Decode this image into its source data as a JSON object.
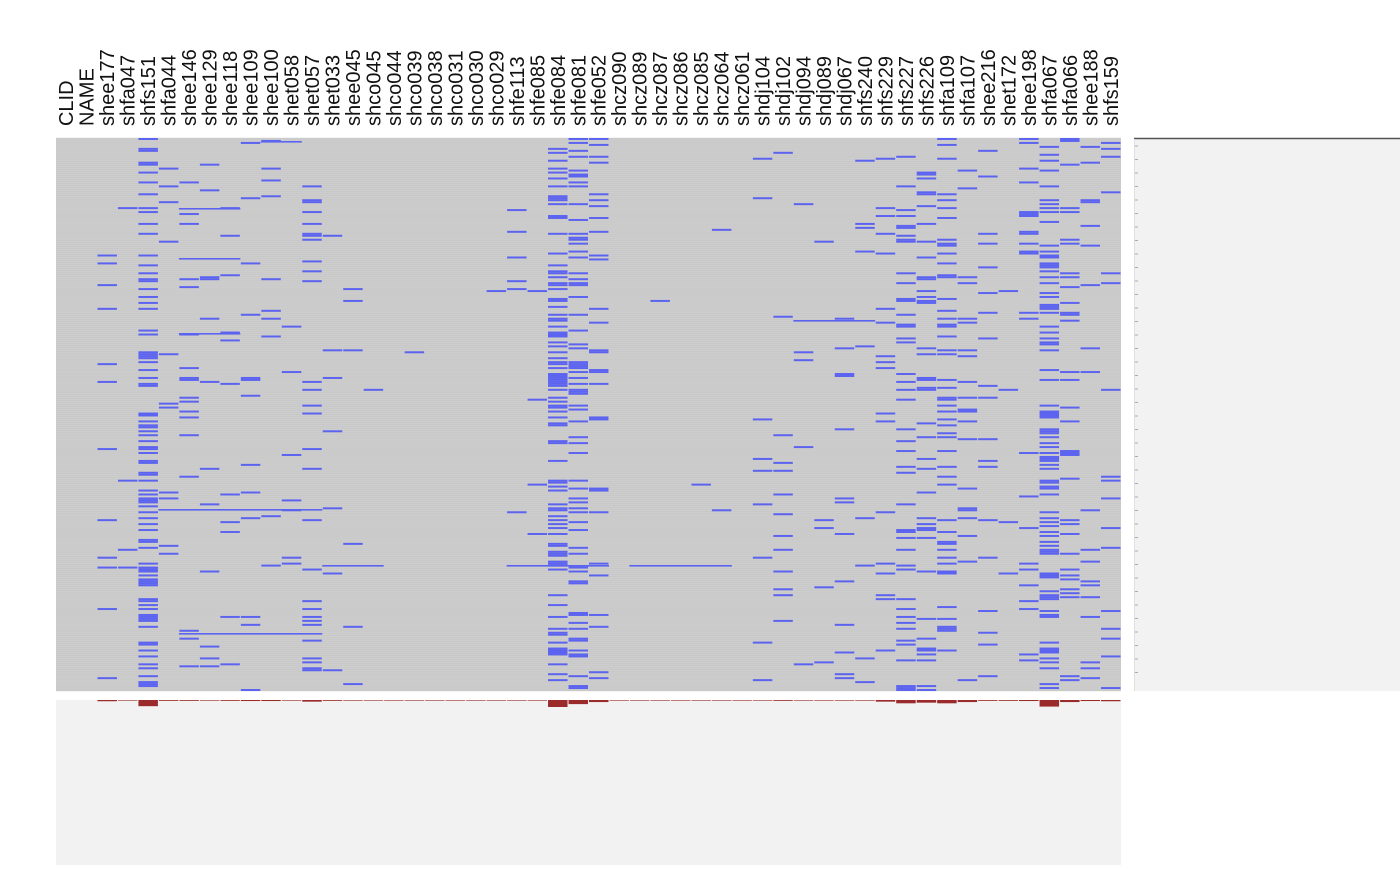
{
  "chart_data": {
    "type": "heatmap",
    "columns": [
      "CLID",
      "NAME",
      "shee177",
      "shfa047",
      "shfs151",
      "shfa044",
      "shee146",
      "shee129",
      "shee118",
      "shee109",
      "shee100",
      "shet058",
      "shet057",
      "shet033",
      "shee045",
      "shco045",
      "shco044",
      "shco039",
      "shco038",
      "shco031",
      "shco030",
      "shco029",
      "shfe113",
      "shfe085",
      "shfe084",
      "shfe081",
      "shfe052",
      "shcz090",
      "shcz089",
      "shcz087",
      "shcz086",
      "shcz085",
      "shcz064",
      "shcz061",
      "shdj104",
      "shdj102",
      "shdj094",
      "shdj089",
      "shdj067",
      "shfs240",
      "shfs229",
      "shfs227",
      "shfs226",
      "shfa109",
      "shfa107",
      "shee216",
      "shet172",
      "shee198",
      "shfa067",
      "shfa066",
      "shee188",
      "shfs159"
    ],
    "data_columns_start": 2,
    "cell_states": [
      "absent",
      "present"
    ],
    "colors": {
      "background_cell": "#cdcdcd",
      "present_cell": "#5b63f0",
      "summary_bar": "#9b2a2a",
      "side_panel": "#f2f2f2",
      "bottom_panel": "#f2f2f2"
    },
    "column_presence_fraction": [
      0,
      0,
      0.06,
      0.01,
      0.3,
      0.04,
      0.04,
      0.03,
      0.04,
      0.05,
      0.05,
      0.03,
      0.08,
      0.04,
      0.03,
      0.002,
      0.002,
      0.002,
      0.002,
      0.002,
      0.002,
      0.002,
      0.02,
      0.01,
      0.34,
      0.2,
      0.1,
      0.002,
      0.002,
      0.002,
      0.002,
      0.002,
      0.002,
      0.002,
      0.02,
      0.04,
      0.02,
      0.01,
      0.03,
      0.03,
      0.08,
      0.16,
      0.13,
      0.16,
      0.1,
      0.04,
      0.04,
      0.05,
      0.32,
      0.1,
      0.05,
      0.06
    ]
  }
}
